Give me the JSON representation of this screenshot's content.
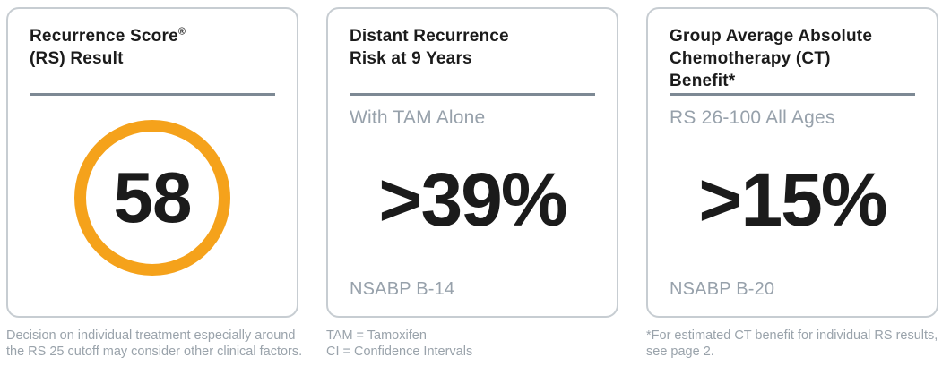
{
  "colors": {
    "accent_orange": "#f5a21b",
    "text_dark": "#1b1b1b",
    "text_gray": "#97a1ab",
    "divider_gray": "#7d8994",
    "card_border": "#c7cdd2"
  },
  "cards": [
    {
      "title_lines": [
        "Recurrence Score",
        "(RS) Result"
      ],
      "title_sup": "®",
      "score": "58",
      "footnote": "Decision on individual treatment especially around the RS 25 cutoff may consider other clinical factors."
    },
    {
      "title_lines": [
        "Distant Recurrence",
        "Risk at 9 Years"
      ],
      "subtitle": "With TAM Alone",
      "value": ">39%",
      "source": "NSABP B-14",
      "footnote_lines": [
        "TAM = Tamoxifen",
        "CI = Confidence Intervals"
      ]
    },
    {
      "title_lines": [
        "Group Average Absolute",
        "Chemotherapy (CT)",
        "Benefit*"
      ],
      "subtitle": "RS 26-100 All Ages",
      "value": ">15%",
      "source": "NSABP B-20",
      "footnote": "*For estimated CT benefit for individual RS results, see page 2."
    }
  ]
}
